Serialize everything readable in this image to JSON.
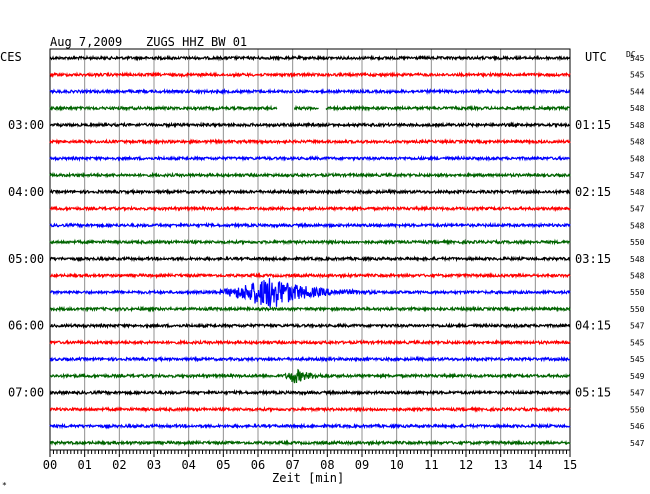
{
  "header": {
    "date": "Aug 7,2009",
    "station": "ZUGS HHZ BW 01",
    "left_tz": "CES",
    "right_tz": "UTC",
    "dc_label": "DC"
  },
  "colors": {
    "trace_cycle": [
      "#000000",
      "#ff0000",
      "#0000ff",
      "#006400"
    ],
    "grid": "#909090",
    "frame": "#000000"
  },
  "chart_data": {
    "type": "line",
    "title": "Aug 7,2009   ZUGS HHZ BW 01",
    "xlabel": "Zeit [min]",
    "ylabel": "",
    "x_ticks": [
      "00",
      "01",
      "02",
      "03",
      "04",
      "05",
      "06",
      "07",
      "08",
      "09",
      "10",
      "11",
      "12",
      "13",
      "14",
      "15"
    ],
    "xlim": [
      0,
      15
    ],
    "n_traces": 24,
    "left_hour_labels": [
      {
        "trace": 4,
        "text": "03:00"
      },
      {
        "trace": 8,
        "text": "04:00"
      },
      {
        "trace": 12,
        "text": "05:00"
      },
      {
        "trace": 16,
        "text": "06:00"
      },
      {
        "trace": 20,
        "text": "07:00"
      }
    ],
    "right_hour_labels": [
      {
        "trace": 4,
        "text": "01:15"
      },
      {
        "trace": 8,
        "text": "02:15"
      },
      {
        "trace": 12,
        "text": "03:15"
      },
      {
        "trace": 16,
        "text": "04:15"
      },
      {
        "trace": 20,
        "text": "05:15"
      }
    ],
    "dc_values": [
      545,
      545,
      544,
      548,
      548,
      548,
      548,
      547,
      548,
      547,
      548,
      550,
      548,
      548,
      550,
      550,
      547,
      545,
      545,
      549,
      547,
      550,
      546,
      547
    ],
    "gaps": [
      {
        "trace": 3,
        "start_min": 6.55,
        "end_min": 7.05
      },
      {
        "trace": 3,
        "start_min": 7.75,
        "end_min": 7.95
      }
    ],
    "events": [
      {
        "trace": 14,
        "start_min": 4.6,
        "peak_min": 6.4,
        "end_min": 9.3,
        "peak_amplitude_px": 16
      },
      {
        "trace": 19,
        "start_min": 6.7,
        "peak_min": 7.05,
        "end_min": 8.3,
        "peak_amplitude_px": 7
      }
    ]
  }
}
